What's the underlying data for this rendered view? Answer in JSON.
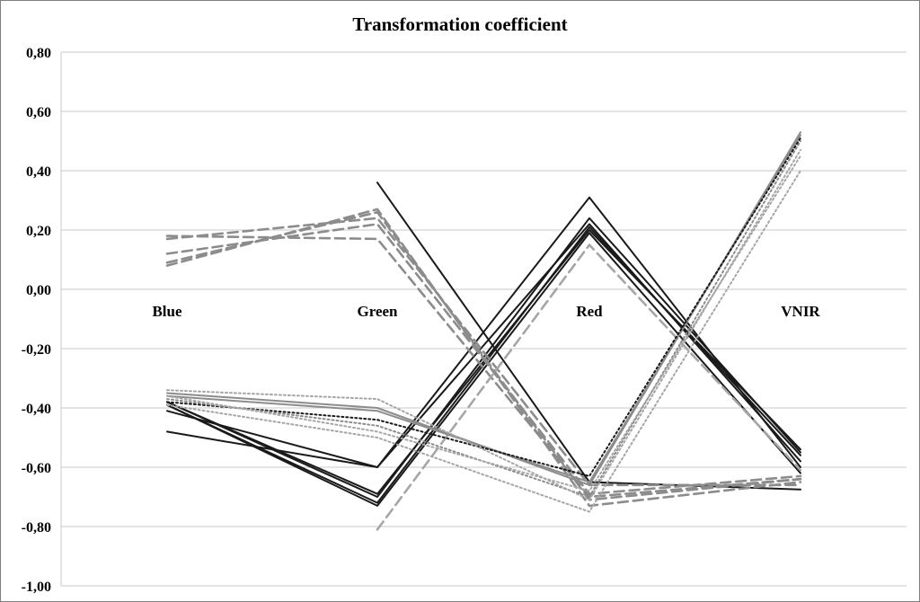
{
  "chart_data": {
    "type": "line",
    "title": "Transformation coefficient",
    "categories": [
      "Blue",
      "Green",
      "Red",
      "VNIR"
    ],
    "ylim": [
      -1.0,
      0.8
    ],
    "ytick_labels": [
      "0,80",
      "0,60",
      "0,40",
      "0,20",
      "0,00",
      "-0,20",
      "-0,40",
      "-0,60",
      "-0,80",
      "-1,00"
    ],
    "ytick_values": [
      0.8,
      0.6,
      0.4,
      0.2,
      0.0,
      -0.2,
      -0.4,
      -0.6,
      -0.8,
      -1.0
    ],
    "grid": true,
    "legend": "none",
    "series": [
      {
        "values": [
          -0.48,
          -0.6,
          0.31,
          -0.6
        ],
        "color": "#1a1a1a",
        "style": "solid"
      },
      {
        "values": [
          -0.38,
          -0.7,
          0.24,
          -0.55
        ],
        "color": "#1a1a1a",
        "style": "solid"
      },
      {
        "values": [
          -0.39,
          -0.72,
          0.21,
          -0.56
        ],
        "color": "#1a1a1a",
        "style": "solid"
      },
      {
        "values": [
          -0.38,
          -0.69,
          0.2,
          -0.54
        ],
        "color": "#1a1a1a",
        "style": "solid"
      },
      {
        "values": [
          -0.41,
          -0.6,
          0.22,
          -0.58
        ],
        "color": "#1a1a1a",
        "style": "solid"
      },
      {
        "values": [
          -0.39,
          -0.73,
          0.19,
          -0.62
        ],
        "color": "#1a1a1a",
        "style": "solid"
      },
      {
        "values": [
          null,
          0.36,
          -0.65,
          -0.675
        ],
        "color": "#1a1a1a",
        "style": "solid"
      },
      {
        "values": [
          0.08,
          0.27,
          -0.73,
          -0.65
        ],
        "color": "#8c8c8c",
        "style": "dashed"
      },
      {
        "values": [
          0.09,
          0.26,
          -0.71,
          -0.64
        ],
        "color": "#8c8c8c",
        "style": "dashed"
      },
      {
        "values": [
          0.12,
          0.22,
          -0.69,
          -0.63
        ],
        "color": "#8c8c8c",
        "style": "dashed"
      },
      {
        "values": [
          0.17,
          0.24,
          -0.66,
          -0.66
        ],
        "color": "#8c8c8c",
        "style": "dashed"
      },
      {
        "values": [
          0.18,
          0.17,
          -0.7,
          -0.64
        ],
        "color": "#8c8c8c",
        "style": "dashed"
      },
      {
        "values": [
          null,
          -0.81,
          0.15,
          -0.61
        ],
        "color": "#a6a6a6",
        "style": "dashed"
      },
      {
        "values": [
          -0.35,
          -0.4,
          -0.66,
          0.53
        ],
        "color": "#8c8c8c",
        "style": "solid"
      },
      {
        "values": [
          -0.36,
          -0.41,
          -0.65,
          0.52
        ],
        "color": "#8c8c8c",
        "style": "solid"
      },
      {
        "values": [
          -0.38,
          -0.44,
          -0.63,
          0.51
        ],
        "color": "#1a1a1a",
        "style": "dotted"
      },
      {
        "values": [
          -0.37,
          -0.46,
          -0.7,
          0.5
        ],
        "color": "#8c8c8c",
        "style": "dotted"
      },
      {
        "values": [
          -0.34,
          -0.37,
          -0.71,
          0.47
        ],
        "color": "#a6a6a6",
        "style": "dotted"
      },
      {
        "values": [
          -0.39,
          -0.5,
          -0.75,
          0.4
        ],
        "color": "#a6a6a6",
        "style": "dotted"
      },
      {
        "values": [
          -0.36,
          -0.48,
          -0.68,
          0.45
        ],
        "color": "#a6a6a6",
        "style": "dotted"
      }
    ]
  }
}
